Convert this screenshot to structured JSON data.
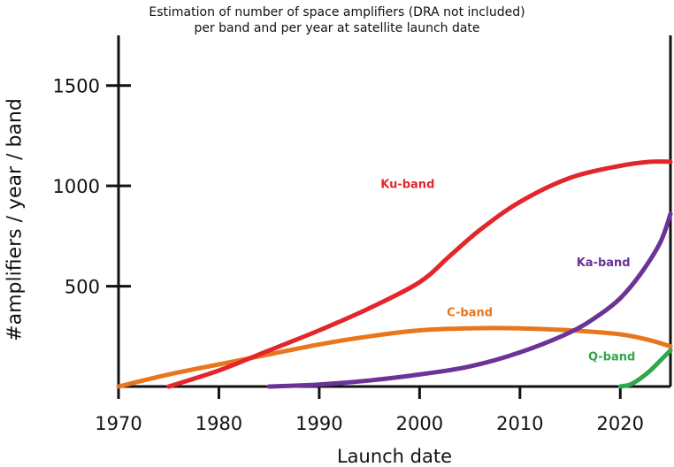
{
  "chart_data": {
    "type": "line",
    "title": "Estimation of number of space amplifiers (DRA not included)",
    "subtitle": "per band and per year at satellite launch date",
    "xlabel": "Launch date",
    "ylabel": "#amplifiers / year / band",
    "xlim": [
      1970,
      2025
    ],
    "ylim": [
      0,
      1750
    ],
    "x_ticks": [
      1970,
      1980,
      1990,
      2000,
      2010,
      2020
    ],
    "y_ticks": [
      500,
      1000,
      1500
    ],
    "grid": false,
    "series": [
      {
        "name": "Ku-band",
        "color": "#e3262b",
        "x": [
          1975,
          1980,
          1985,
          1990,
          1995,
          2000,
          2003,
          2006,
          2010,
          2015,
          2020,
          2023,
          2025
        ],
        "y": [
          0,
          80,
          180,
          280,
          390,
          520,
          650,
          780,
          920,
          1040,
          1100,
          1120,
          1120
        ]
      },
      {
        "name": "C-band",
        "color": "#e8761c",
        "x": [
          1970,
          1975,
          1980,
          1985,
          1990,
          1995,
          2000,
          2005,
          2010,
          2015,
          2020,
          2023,
          2025
        ],
        "y": [
          0,
          60,
          110,
          160,
          210,
          250,
          280,
          290,
          290,
          280,
          260,
          230,
          200
        ]
      },
      {
        "name": "Ka-band",
        "color": "#6a3395",
        "x": [
          1985,
          1990,
          1995,
          2000,
          2005,
          2010,
          2015,
          2018,
          2020,
          2022,
          2024,
          2025
        ],
        "y": [
          0,
          10,
          30,
          60,
          100,
          170,
          270,
          360,
          440,
          560,
          720,
          860
        ]
      },
      {
        "name": "Q-band",
        "color": "#2ea84b",
        "x": [
          2020,
          2021,
          2022,
          2023,
          2024,
          2025
        ],
        "y": [
          0,
          10,
          40,
          80,
          130,
          180
        ]
      }
    ]
  }
}
